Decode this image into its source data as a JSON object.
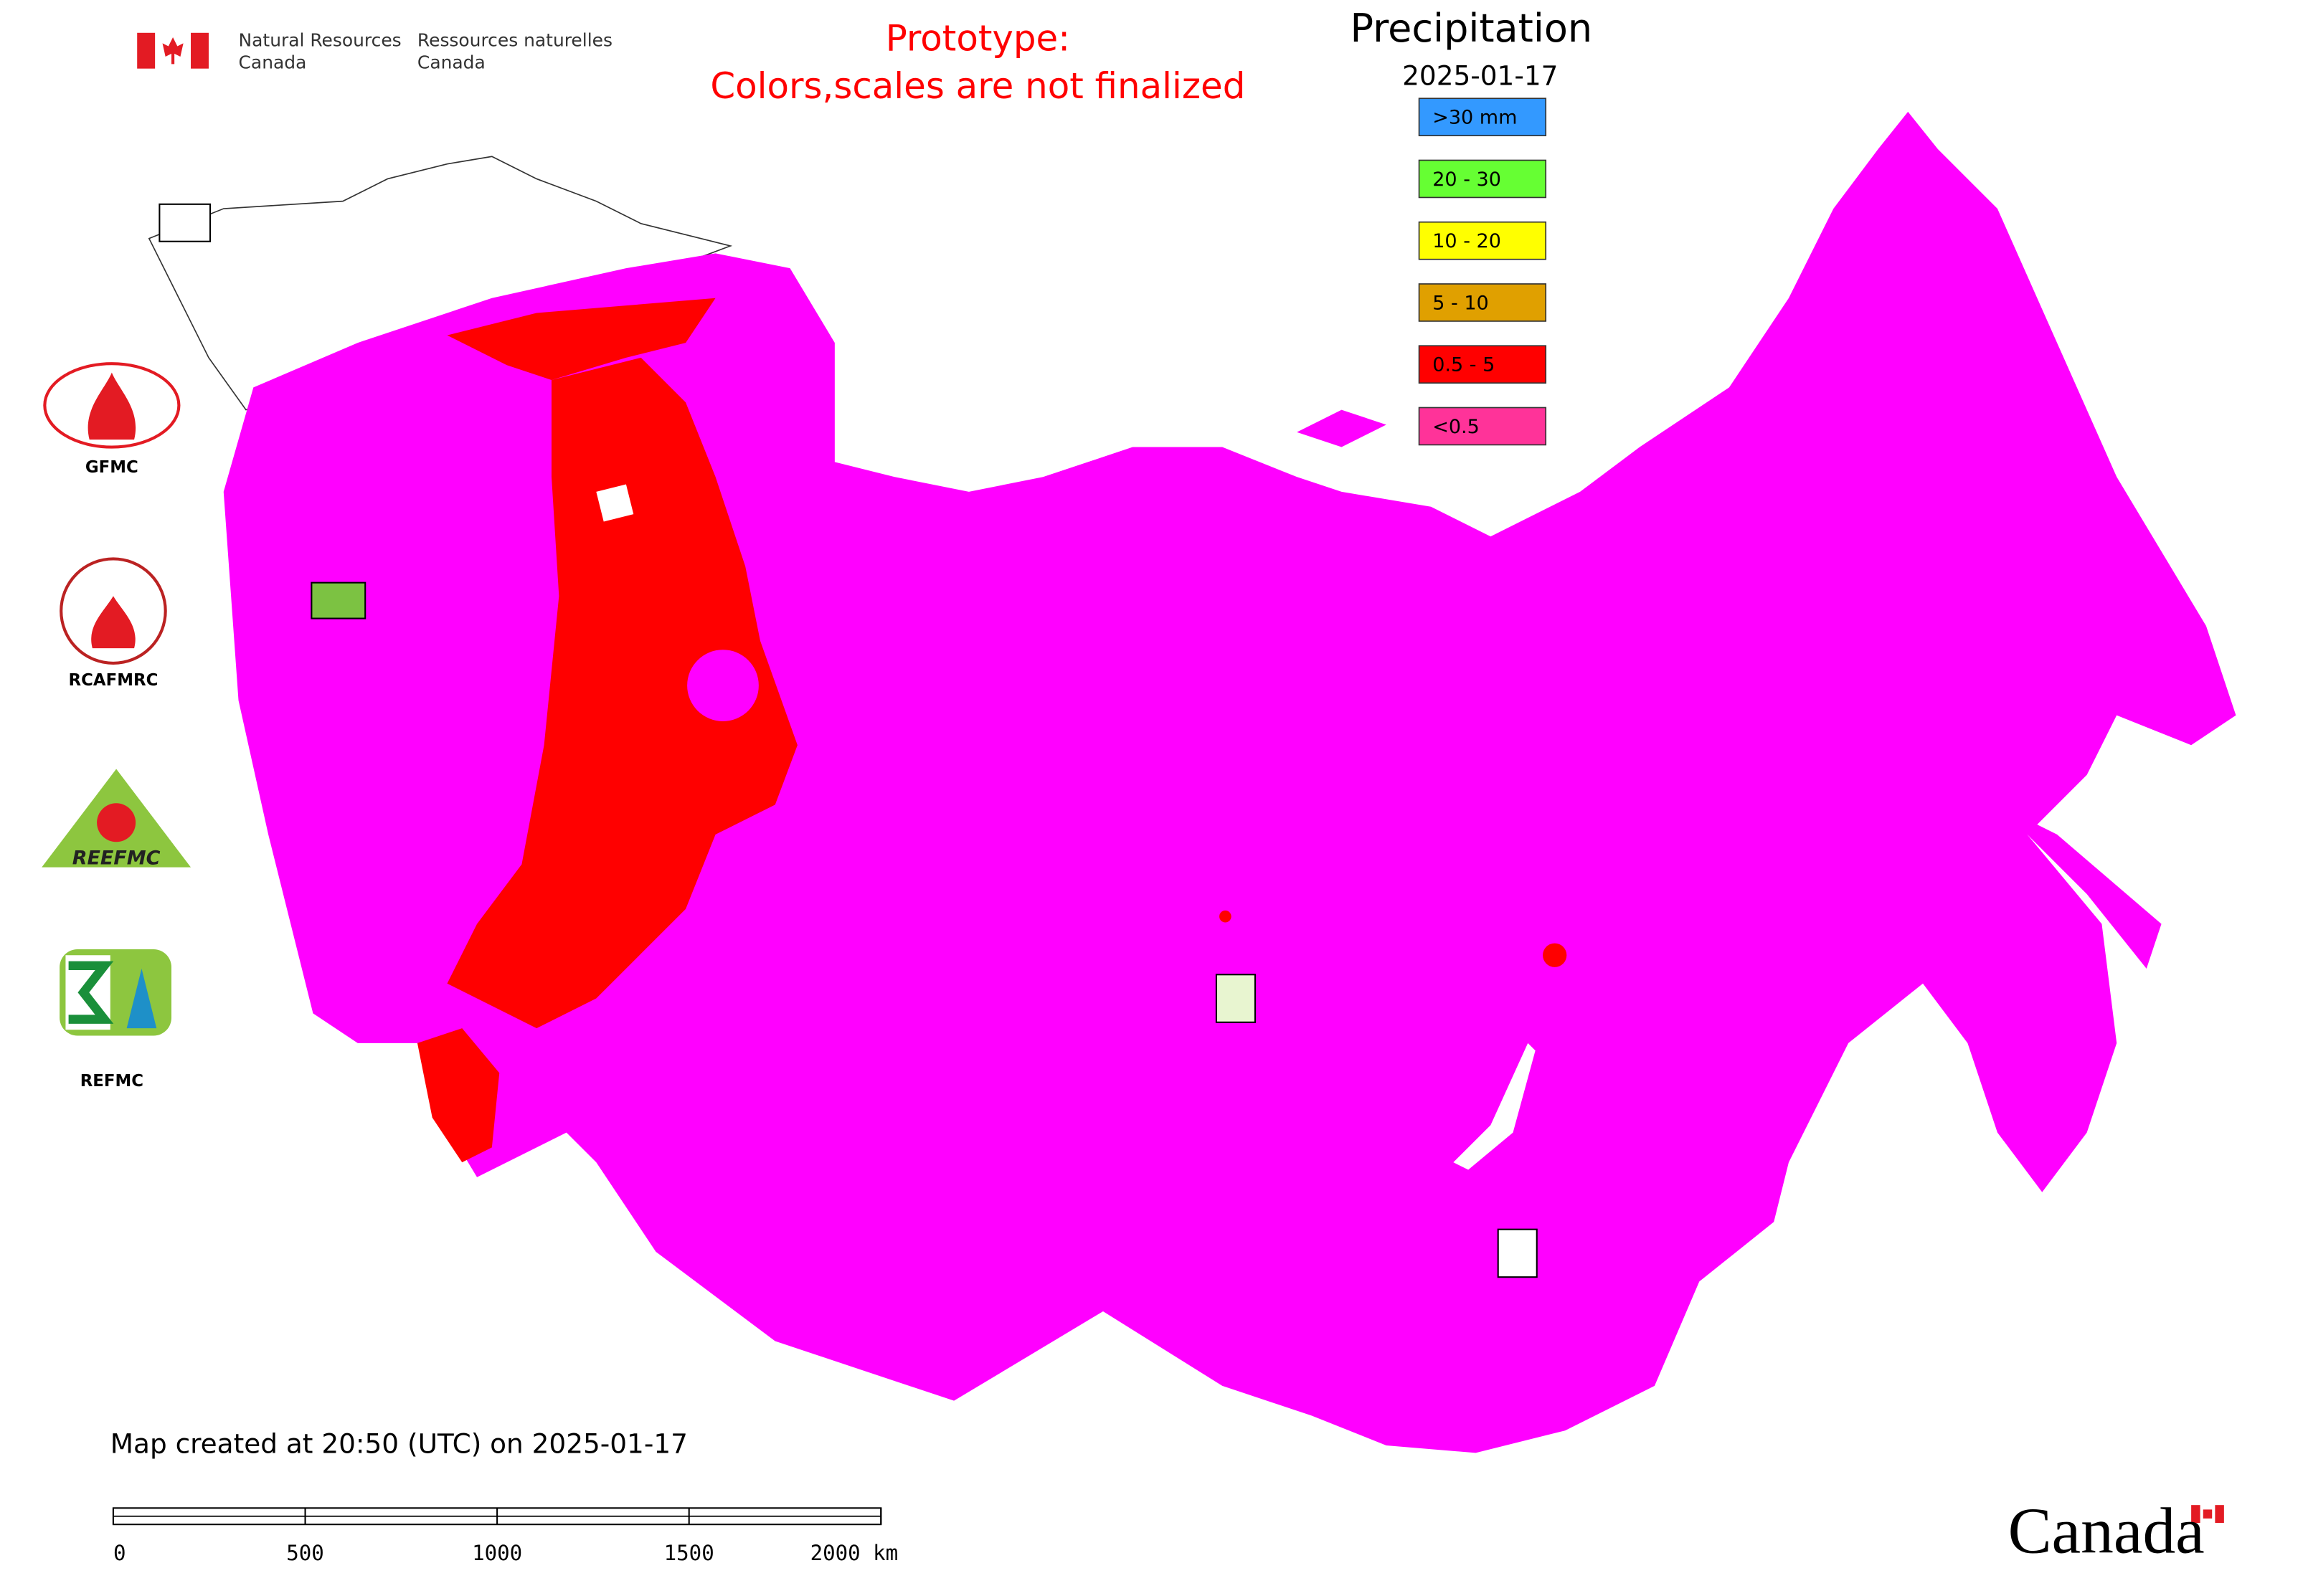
{
  "agency": {
    "en_line1": "Natural Resources",
    "en_line2": "Canada",
    "fr_line1": "Ressources naturelles",
    "fr_line2": "Canada"
  },
  "notice": {
    "line1": "Prototype:",
    "line2": "Colors,scales are not finalized"
  },
  "legend": {
    "title": "Precipitation",
    "date": "2025-01-17",
    "items": [
      {
        "label": ">30 mm",
        "color": "#3399ff"
      },
      {
        "label": "20 - 30",
        "color": "#66ff33"
      },
      {
        "label": "10 - 20",
        "color": "#ffff00"
      },
      {
        "label": "5 - 10",
        "color": "#e0a000"
      },
      {
        "label": "0.5 - 5",
        "color": "#ff0000"
      },
      {
        "label": "<0.5",
        "color": "#ff3399"
      }
    ]
  },
  "logos": [
    {
      "label": "GFMC"
    },
    {
      "label": "RCAFMRC"
    },
    {
      "label": "REEFMC"
    },
    {
      "label": "REFMC"
    }
  ],
  "footer": {
    "created": "Map created at 20:50 (UTC) on 2025-01-17",
    "scale_labels": [
      "0",
      "500",
      "1000",
      "1500",
      "2000 km"
    ],
    "wordmark": "Canada"
  }
}
